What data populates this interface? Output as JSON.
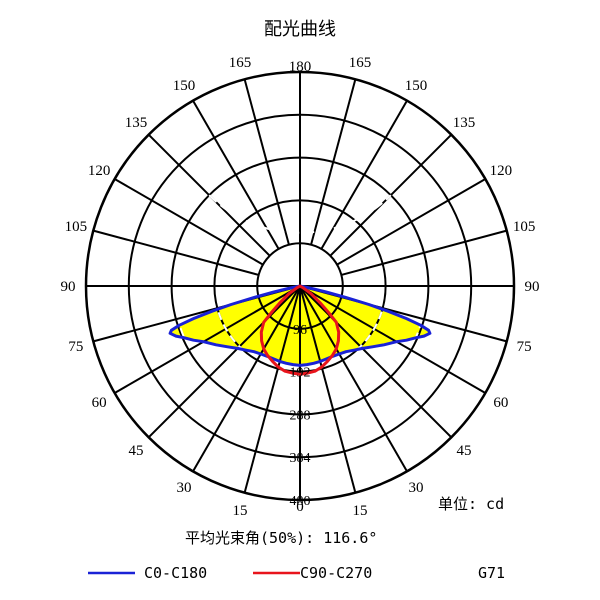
{
  "chart_data": {
    "type": "polar",
    "title": "配光曲线",
    "angle_labels": [
      {
        "text": "180",
        "deg": 180,
        "side": "center"
      },
      {
        "text": "165",
        "deg": 165,
        "side": "left"
      },
      {
        "text": "150",
        "deg": 150,
        "side": "left"
      },
      {
        "text": "135",
        "deg": 135,
        "side": "left"
      },
      {
        "text": "120",
        "deg": 120,
        "side": "left"
      },
      {
        "text": "105",
        "deg": 105,
        "side": "left"
      },
      {
        "text": "90",
        "deg": 90,
        "side": "left"
      },
      {
        "text": "75",
        "deg": 75,
        "side": "left"
      },
      {
        "text": "60",
        "deg": 60,
        "side": "left"
      },
      {
        "text": "45",
        "deg": 45,
        "side": "left"
      },
      {
        "text": "30",
        "deg": 30,
        "side": "left"
      },
      {
        "text": "15",
        "deg": 15,
        "side": "left"
      },
      {
        "text": "0",
        "deg": 0,
        "side": "center"
      },
      {
        "text": "165",
        "deg": 165,
        "side": "right"
      },
      {
        "text": "150",
        "deg": 150,
        "side": "right"
      },
      {
        "text": "135",
        "deg": 135,
        "side": "right"
      },
      {
        "text": "120",
        "deg": 120,
        "side": "right"
      },
      {
        "text": "105",
        "deg": 105,
        "side": "right"
      },
      {
        "text": "90",
        "deg": 90,
        "side": "right"
      },
      {
        "text": "75",
        "deg": 75,
        "side": "right"
      },
      {
        "text": "60",
        "deg": 60,
        "side": "right"
      },
      {
        "text": "45",
        "deg": 45,
        "side": "right"
      },
      {
        "text": "30",
        "deg": 30,
        "side": "right"
      },
      {
        "text": "15",
        "deg": 15,
        "side": "right"
      }
    ],
    "radial_ticks": [
      96,
      192,
      288,
      384,
      480
    ],
    "r_max": 480,
    "unit_label": "单位: cd",
    "beam_angle_label": "平均光束角(50%): 116.6°",
    "model": "G71",
    "series": [
      {
        "name": "C0-C180",
        "color": "#1a22d6",
        "fill": "#ffff00",
        "points": [
          [
            -80,
            0
          ],
          [
            -78,
            28
          ],
          [
            -77,
            60
          ],
          [
            -76,
            105
          ],
          [
            -75,
            160
          ],
          [
            -74,
            205
          ],
          [
            -73,
            250
          ],
          [
            -72,
            285
          ],
          [
            -71,
            305
          ],
          [
            -70,
            310
          ],
          [
            -68,
            300
          ],
          [
            -66,
            285
          ],
          [
            -63,
            268
          ],
          [
            -60,
            250
          ],
          [
            -55,
            230
          ],
          [
            -50,
            212
          ],
          [
            -45,
            198
          ],
          [
            -40,
            188
          ],
          [
            -35,
            180
          ],
          [
            -30,
            176
          ],
          [
            -25,
            174
          ],
          [
            -20,
            174
          ],
          [
            -15,
            175
          ],
          [
            -10,
            176
          ],
          [
            -5,
            177
          ],
          [
            0,
            178
          ],
          [
            5,
            177
          ],
          [
            10,
            176
          ],
          [
            15,
            175
          ],
          [
            20,
            174
          ],
          [
            25,
            174
          ],
          [
            30,
            176
          ],
          [
            35,
            180
          ],
          [
            40,
            188
          ],
          [
            45,
            198
          ],
          [
            50,
            212
          ],
          [
            55,
            230
          ],
          [
            60,
            250
          ],
          [
            63,
            268
          ],
          [
            66,
            285
          ],
          [
            68,
            300
          ],
          [
            70,
            310
          ],
          [
            71,
            305
          ],
          [
            72,
            285
          ],
          [
            73,
            250
          ],
          [
            74,
            205
          ],
          [
            75,
            160
          ],
          [
            76,
            105
          ],
          [
            77,
            60
          ],
          [
            78,
            28
          ],
          [
            80,
            0
          ]
        ]
      },
      {
        "name": "C90-C270",
        "color": "#e8141c",
        "points": [
          [
            -90,
            0
          ],
          [
            -60,
            8
          ],
          [
            -55,
            30
          ],
          [
            -50,
            60
          ],
          [
            -47,
            90
          ],
          [
            -45,
            115
          ],
          [
            -40,
            135
          ],
          [
            -35,
            150
          ],
          [
            -30,
            163
          ],
          [
            -25,
            172
          ],
          [
            -20,
            180
          ],
          [
            -15,
            188
          ],
          [
            -10,
            194
          ],
          [
            -5,
            196
          ],
          [
            0,
            198
          ],
          [
            5,
            196
          ],
          [
            10,
            194
          ],
          [
            15,
            188
          ],
          [
            20,
            180
          ],
          [
            25,
            172
          ],
          [
            30,
            163
          ],
          [
            35,
            150
          ],
          [
            40,
            135
          ],
          [
            45,
            115
          ],
          [
            47,
            90
          ],
          [
            50,
            60
          ],
          [
            55,
            30
          ],
          [
            60,
            8
          ],
          [
            90,
            0
          ]
        ]
      }
    ]
  }
}
